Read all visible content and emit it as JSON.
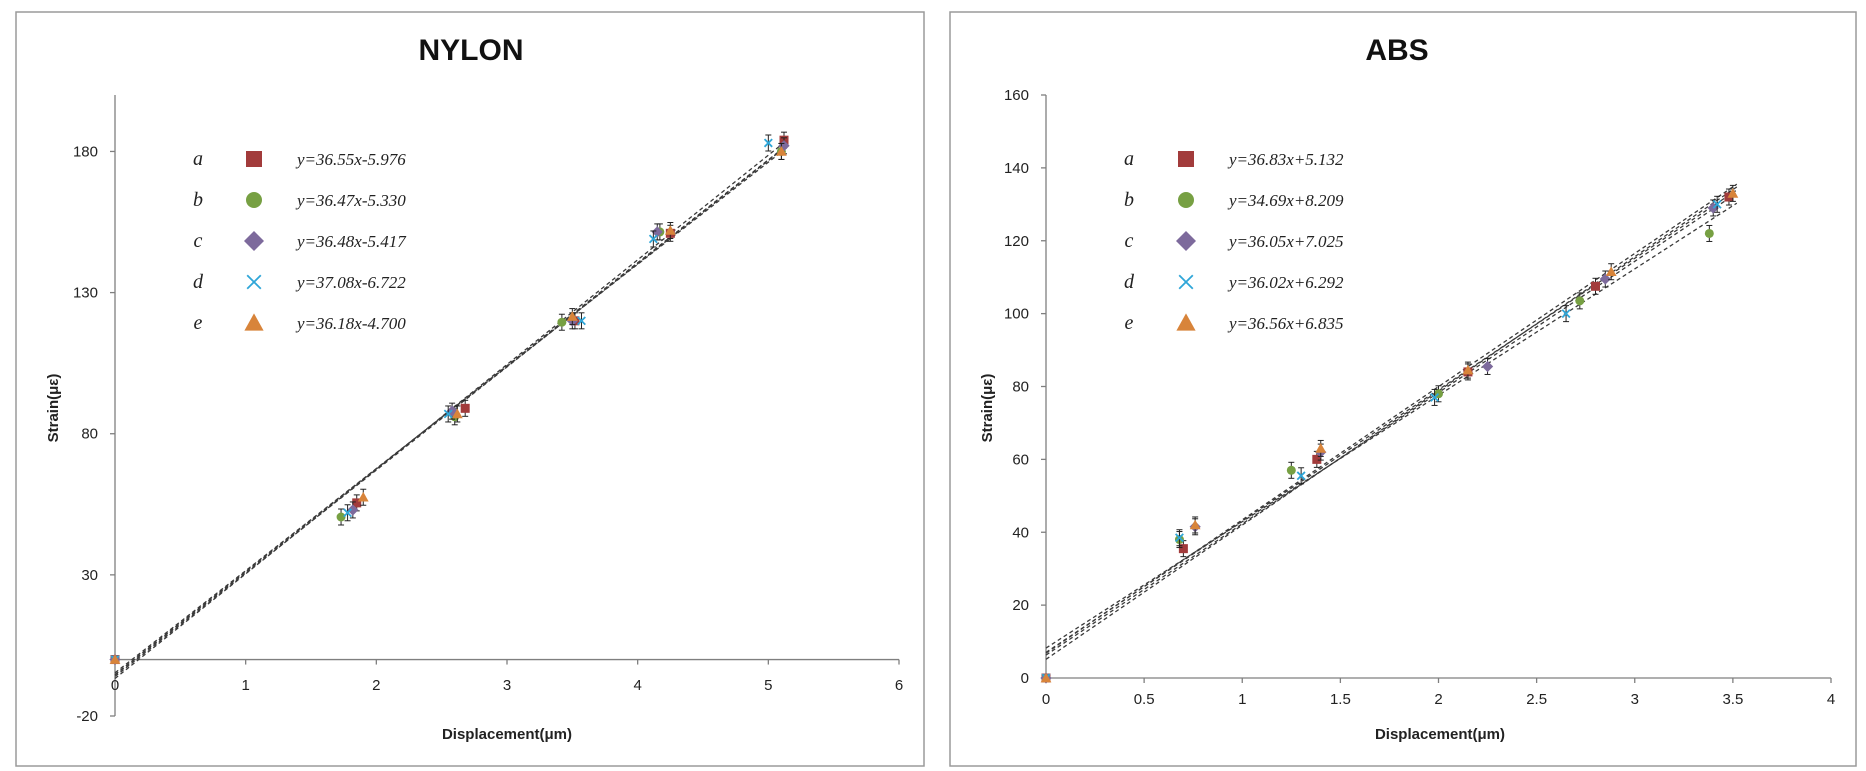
{
  "chart_data": [
    {
      "type": "scatter",
      "title": "NYLON",
      "xlabel": "Displacement(μm)",
      "ylabel": "Strain(με)",
      "xlim": [
        0,
        6
      ],
      "ylim": [
        -20,
        200
      ],
      "xticks": [
        "0",
        "1",
        "2",
        "3",
        "4",
        "5",
        "6"
      ],
      "yticks": [
        "-20",
        "30",
        "80",
        "130",
        "180"
      ],
      "series": [
        {
          "name": "a",
          "equation": "y=36.55x-5.976",
          "slope": 36.55,
          "intercept": -5.976,
          "marker": "square",
          "color": "#a23b3b",
          "x": [
            0,
            1.85,
            2.68,
            3.52,
            4.25,
            5.12
          ],
          "y": [
            0,
            55.5,
            89,
            120,
            151,
            184
          ]
        },
        {
          "name": "b",
          "equation": "y=36.47x-5.330",
          "slope": 36.47,
          "intercept": -5.33,
          "marker": "circle",
          "color": "#77a043",
          "x": [
            0,
            1.73,
            2.6,
            3.42,
            4.17,
            5.1
          ],
          "y": [
            0,
            50.5,
            86,
            119.5,
            151.5,
            180
          ]
        },
        {
          "name": "c",
          "equation": "y=36.48x-5.417",
          "slope": 36.48,
          "intercept": -5.417,
          "marker": "diamond",
          "color": "#7d6a9c",
          "x": [
            0,
            1.82,
            2.58,
            3.5,
            4.15,
            5.12
          ],
          "y": [
            0,
            53,
            88,
            120,
            151.5,
            182
          ]
        },
        {
          "name": "d",
          "equation": "y=37.08x-6.722",
          "slope": 37.08,
          "intercept": -6.722,
          "marker": "x",
          "color": "#2fa6d8",
          "x": [
            0,
            1.78,
            2.55,
            3.57,
            4.12,
            5.0
          ],
          "y": [
            0,
            52,
            87,
            120,
            149,
            183
          ]
        },
        {
          "name": "e",
          "equation": "y=36.18x-4.700",
          "slope": 36.18,
          "intercept": -4.7,
          "marker": "triangle",
          "color": "#d8843a",
          "x": [
            0,
            1.9,
            2.62,
            3.5,
            4.25,
            5.1
          ],
          "y": [
            0,
            57.5,
            87,
            121.5,
            152,
            180
          ]
        }
      ]
    },
    {
      "type": "scatter",
      "title": "ABS",
      "xlabel": "Displacement(μm)",
      "ylabel": "Strain(με)",
      "xlim": [
        0,
        4
      ],
      "ylim": [
        0,
        160
      ],
      "xticks": [
        "0",
        "0.5",
        "1",
        "1.5",
        "2",
        "2.5",
        "3",
        "3.5",
        "4"
      ],
      "yticks": [
        "0",
        "20",
        "40",
        "60",
        "80",
        "100",
        "120",
        "140",
        "160"
      ],
      "series": [
        {
          "name": "a",
          "equation": "y=36.83x+5.132",
          "slope": 36.83,
          "intercept": 5.132,
          "marker": "square",
          "color": "#a23b3b",
          "x": [
            0,
            0.7,
            1.38,
            2.15,
            2.8,
            3.48
          ],
          "y": [
            0,
            35.5,
            60,
            84,
            107.5,
            132
          ]
        },
        {
          "name": "b",
          "equation": "y=34.69x+8.209",
          "slope": 34.69,
          "intercept": 8.209,
          "marker": "circle",
          "color": "#77a043",
          "x": [
            0,
            0.68,
            1.25,
            2.0,
            2.72,
            3.38
          ],
          "y": [
            0,
            38,
            57,
            78,
            103.5,
            122
          ]
        },
        {
          "name": "c",
          "equation": "y=36.05x+7.025",
          "slope": 36.05,
          "intercept": 7.025,
          "marker": "diamond",
          "color": "#7d6a9c",
          "x": [
            0,
            0.76,
            1.4,
            2.25,
            2.85,
            3.4
          ],
          "y": [
            0,
            41.5,
            62,
            85.5,
            109.5,
            129
          ]
        },
        {
          "name": "d",
          "equation": "y=36.02x+6.292",
          "slope": 36.02,
          "intercept": 6.292,
          "marker": "x",
          "color": "#2fa6d8",
          "x": [
            0,
            0.68,
            1.3,
            1.98,
            2.65,
            3.42
          ],
          "y": [
            0,
            38.5,
            55.5,
            77,
            100,
            130
          ]
        },
        {
          "name": "e",
          "equation": "y=36.56x+6.835",
          "slope": 36.56,
          "intercept": 6.835,
          "marker": "triangle",
          "color": "#d8843a",
          "x": [
            0,
            0.76,
            1.4,
            2.15,
            2.88,
            3.5
          ],
          "y": [
            0,
            42,
            63,
            84.5,
            111.5,
            133
          ]
        }
      ]
    }
  ]
}
